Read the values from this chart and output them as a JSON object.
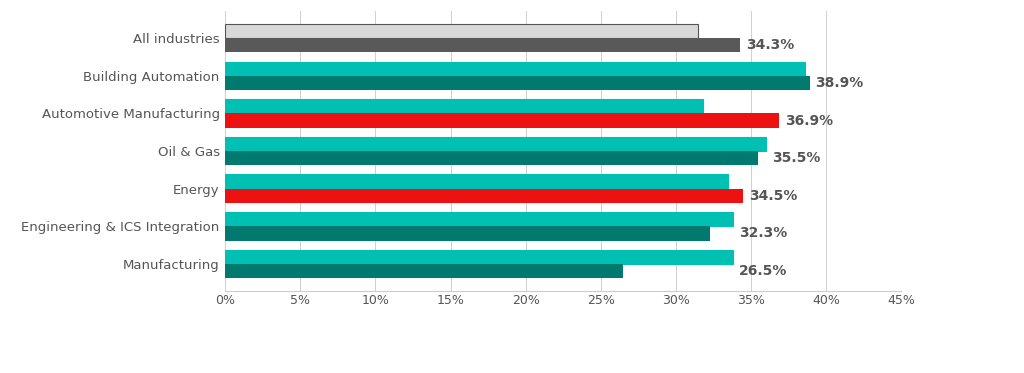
{
  "categories": [
    "All industries",
    "Building Automation",
    "Automotive Manufacturing",
    "Oil & Gas",
    "Energy",
    "Engineering & ICS Integration",
    "Manufacturing"
  ],
  "h2_2022": [
    34.3,
    38.9,
    36.9,
    35.5,
    34.5,
    32.3,
    26.5
  ],
  "h1_2022": [
    31.5,
    38.6,
    31.8,
    36.0,
    33.5,
    33.8,
    33.8
  ],
  "h2_colors": [
    "#595959",
    "#007a6e",
    "#ee1111",
    "#007a6e",
    "#ee1111",
    "#007a6e",
    "#007a6e"
  ],
  "h1_colors": [
    "#d9d9d9",
    "#00bfb3",
    "#00bfb3",
    "#00bfb3",
    "#00bfb3",
    "#00bfb3",
    "#00bfb3"
  ],
  "h1_outline": [
    "#555555",
    "none",
    "none",
    "none",
    "none",
    "none",
    "none"
  ],
  "xlim": [
    0,
    45
  ],
  "xticks": [
    0,
    5,
    10,
    15,
    20,
    25,
    30,
    35,
    40,
    45
  ],
  "bar_height": 0.38,
  "background_color": "#ffffff",
  "text_color": "#555555",
  "label_fontsize": 9.5,
  "tick_fontsize": 9.0,
  "legend_fontsize": 9.5,
  "value_fontsize": 10.0
}
